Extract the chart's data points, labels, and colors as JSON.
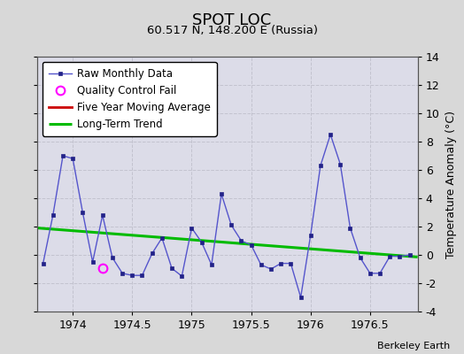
{
  "title": "SPOT LOC",
  "subtitle": "60.517 N, 148.200 E (Russia)",
  "credit": "Berkeley Earth",
  "ylabel": "Temperature Anomaly (°C)",
  "xlim": [
    1973.7,
    1976.9
  ],
  "ylim": [
    -4,
    14
  ],
  "yticks": [
    -4,
    -2,
    0,
    2,
    4,
    6,
    8,
    10,
    12,
    14
  ],
  "xticks": [
    1974,
    1974.5,
    1975,
    1975.5,
    1976,
    1976.5
  ],
  "xtick_labels": [
    "1974",
    "1974.5",
    "1975",
    "1975.5",
    "1976",
    "1976.5"
  ],
  "fig_bg_color": "#d8d8d8",
  "plot_bg_color": "#dcdce8",
  "raw_x": [
    1973.75,
    1973.833,
    1973.917,
    1974.0,
    1974.083,
    1974.167,
    1974.25,
    1974.333,
    1974.417,
    1974.5,
    1974.583,
    1974.667,
    1974.75,
    1974.833,
    1974.917,
    1975.0,
    1975.083,
    1975.167,
    1975.25,
    1975.333,
    1975.417,
    1975.5,
    1975.583,
    1975.667,
    1975.75,
    1975.833,
    1975.917,
    1976.0,
    1976.083,
    1976.167,
    1976.25,
    1976.333,
    1976.417,
    1976.5,
    1976.583,
    1976.667,
    1976.75,
    1976.833
  ],
  "raw_y": [
    -0.6,
    2.8,
    7.0,
    6.8,
    3.0,
    -0.5,
    2.8,
    -0.2,
    -1.3,
    -1.45,
    -1.45,
    0.1,
    1.2,
    -0.95,
    -1.5,
    1.9,
    0.9,
    -0.7,
    4.3,
    2.1,
    1.0,
    0.7,
    -0.7,
    -1.0,
    -0.6,
    -0.6,
    -3.0,
    1.4,
    6.3,
    8.5,
    6.4,
    1.9,
    -0.2,
    -1.3,
    -1.3,
    -0.1,
    -0.1,
    0.0
  ],
  "qc_fail_x": [
    1974.25
  ],
  "qc_fail_y": [
    -0.95
  ],
  "trend_x": [
    1973.7,
    1976.9
  ],
  "trend_y": [
    1.9,
    -0.15
  ],
  "line_color": "#5555cc",
  "marker_color": "#222288",
  "qc_color": "#ff00ff",
  "trend_color": "#00bb00",
  "mavg_color": "#cc0000",
  "grid_color": "#c0c0cc"
}
